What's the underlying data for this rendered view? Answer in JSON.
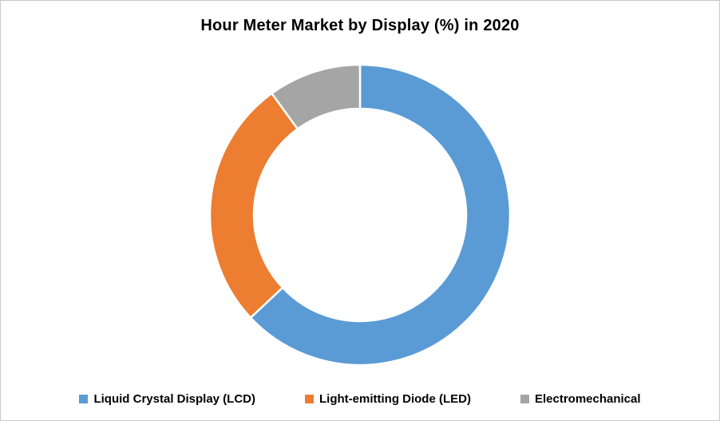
{
  "chart_title": "Hour Meter Market by Display (%) in 2020",
  "chart_data": {
    "type": "pie",
    "subtype": "donut",
    "title": "Hour Meter Market by Display (%) in 2020",
    "categories": [
      "Liquid Crystal Display (LCD)",
      "Light-emitting Diode (LED)",
      "Electromechanical"
    ],
    "values": [
      63,
      27,
      10
    ],
    "unit": "%",
    "colors": [
      "#5B9BD5",
      "#ED7D31",
      "#A5A5A5"
    ],
    "start_angle_deg": 0,
    "direction": "clockwise",
    "inner_radius_ratio": 0.71,
    "slice_border_color": "#FFFFFF",
    "legend_position": "bottom",
    "background_color": "#FFFFFF",
    "border_color": "#C9C9C9"
  }
}
